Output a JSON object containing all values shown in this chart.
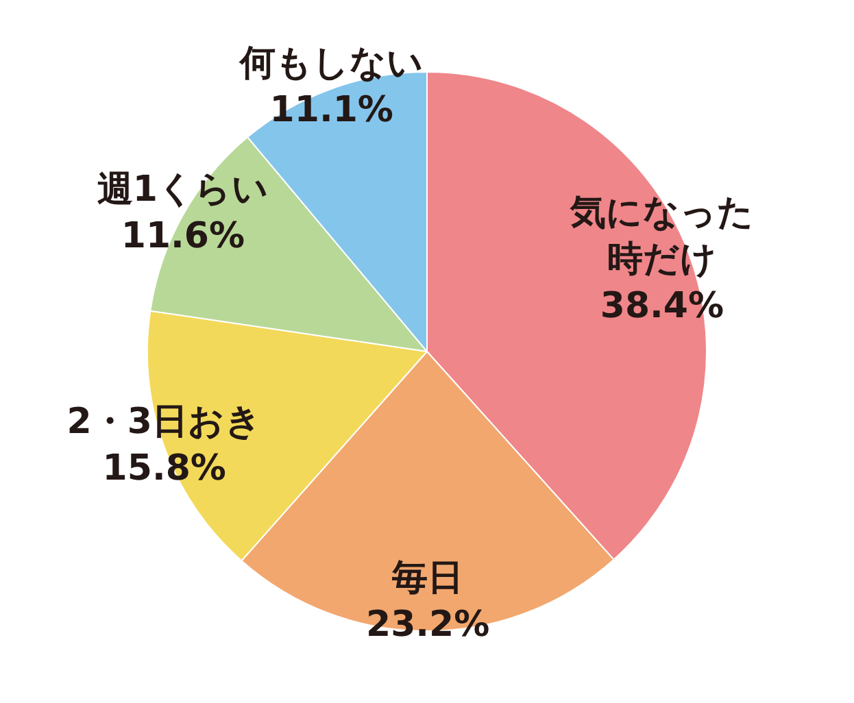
{
  "chart_data": {
    "type": "pie",
    "categories": [
      "気になった時だけ",
      "毎日",
      "2・3日おき",
      "週1くらい",
      "何もしない"
    ],
    "values": [
      38.4,
      23.2,
      15.8,
      11.6,
      11.1
    ],
    "value_labels": [
      "38.4%",
      "23.2%",
      "15.8%",
      "11.6%",
      "11.1%"
    ],
    "colors": [
      "#ef868a",
      "#f2a76e",
      "#f3d95a",
      "#b8d898",
      "#84c5ec"
    ],
    "legend": false
  }
}
